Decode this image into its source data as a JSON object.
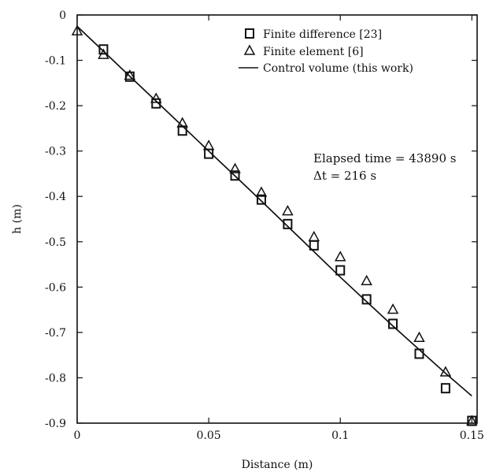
{
  "chart_data": {
    "type": "scatter",
    "xlabel": "Distance (m)",
    "ylabel": "h (m)",
    "xlim": [
      0,
      0.152
    ],
    "ylim": [
      -0.9,
      0
    ],
    "x_ticks": [
      0,
      0.05,
      0.1,
      0.15
    ],
    "x_tick_labels": [
      "0",
      "0.05",
      "0.1",
      "0.15"
    ],
    "y_ticks": [
      0,
      -0.1,
      -0.2,
      -0.3,
      -0.4,
      -0.5,
      -0.6,
      -0.7,
      -0.8,
      -0.9
    ],
    "y_tick_labels": [
      "0",
      "-0.1",
      "-0.2",
      "-0.3",
      "-0.4",
      "-0.5",
      "-0.6",
      "-0.7",
      "-0.8",
      "-0.9"
    ],
    "grid": false,
    "legend_position": "top-right",
    "series": [
      {
        "name": "Finite difference [23]",
        "marker": "square",
        "x": [
          0.01,
          0.02,
          0.03,
          0.04,
          0.05,
          0.06,
          0.07,
          0.08,
          0.09,
          0.1,
          0.11,
          0.12,
          0.13,
          0.14,
          0.15
        ],
        "y": [
          -0.076,
          -0.136,
          -0.195,
          -0.255,
          -0.306,
          -0.354,
          -0.407,
          -0.461,
          -0.508,
          -0.563,
          -0.627,
          -0.681,
          -0.747,
          -0.823,
          -0.895
        ]
      },
      {
        "name": "Finite element [6]",
        "marker": "triangle",
        "x": [
          0,
          0.01,
          0.02,
          0.03,
          0.04,
          0.05,
          0.06,
          0.07,
          0.08,
          0.09,
          0.1,
          0.11,
          0.12,
          0.13,
          0.14,
          0.15
        ],
        "y": [
          -0.035,
          -0.087,
          -0.133,
          -0.184,
          -0.238,
          -0.288,
          -0.339,
          -0.391,
          -0.432,
          -0.489,
          -0.533,
          -0.586,
          -0.649,
          -0.711,
          -0.787,
          -0.895
        ]
      },
      {
        "name": "Control volume (this work)",
        "marker": "line",
        "x": [
          0,
          0.01,
          0.02,
          0.03,
          0.04,
          0.05,
          0.06,
          0.07,
          0.08,
          0.09,
          0.1,
          0.11,
          0.12,
          0.13,
          0.14,
          0.15
        ],
        "y": [
          -0.025,
          -0.08,
          -0.135,
          -0.19,
          -0.245,
          -0.3,
          -0.355,
          -0.41,
          -0.466,
          -0.522,
          -0.578,
          -0.632,
          -0.686,
          -0.738,
          -0.79,
          -0.84
        ]
      }
    ],
    "annotations": [
      "Elapsed time = 43890 s",
      "Δt = 216 s"
    ]
  }
}
